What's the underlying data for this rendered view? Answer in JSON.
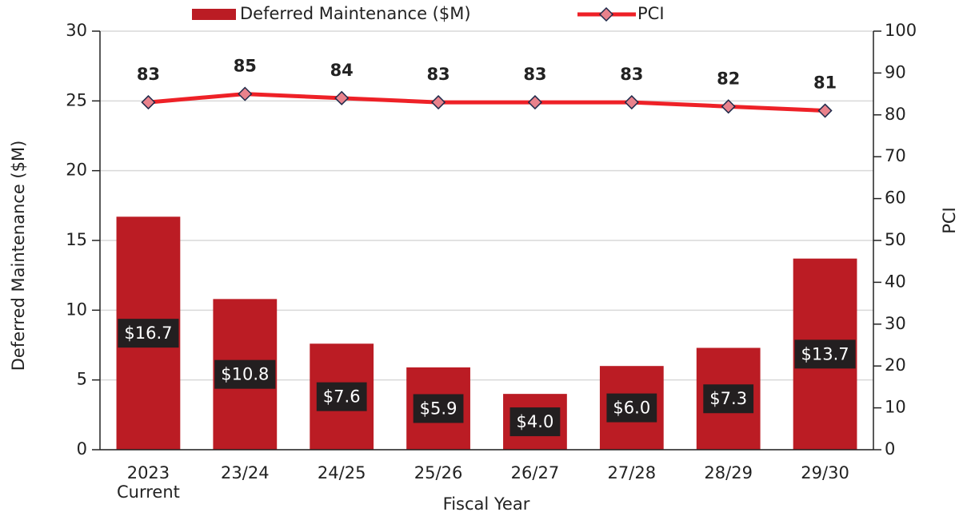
{
  "chart_data": {
    "type": "bar-line",
    "categories": [
      "2023\nCurrent",
      "23/24",
      "24/25",
      "25/26",
      "26/27",
      "27/28",
      "28/29",
      "29/30"
    ],
    "series": [
      {
        "name": "Deferred Maintenance ($M)",
        "color": "#bb1c24",
        "type": "bar",
        "values": [
          16.7,
          10.8,
          7.6,
          5.9,
          4.0,
          6.0,
          7.3,
          13.7
        ],
        "value_labels": [
          "$16.7",
          "$10.8",
          "$7.6",
          "$5.9",
          "$4.0",
          "$6.0",
          "$7.3",
          "$13.7"
        ]
      },
      {
        "name": "PCI",
        "color": "#ee2127",
        "marker_color": "#e9828c",
        "type": "line",
        "axis": "y2",
        "values": [
          83,
          85,
          84,
          83,
          83,
          83,
          82,
          81
        ]
      }
    ],
    "xlabel": "Fiscal Year",
    "ylabel": "Deferred Maintenance ($M)",
    "y2label": "PCI",
    "ylim": [
      0,
      30
    ],
    "yticks": [
      0,
      5,
      10,
      15,
      20,
      25,
      30
    ],
    "y2lim": [
      0,
      100
    ],
    "y2ticks": [
      0,
      10,
      20,
      30,
      40,
      50,
      60,
      70,
      80,
      90,
      100
    ],
    "grid": true,
    "legend": "top"
  }
}
